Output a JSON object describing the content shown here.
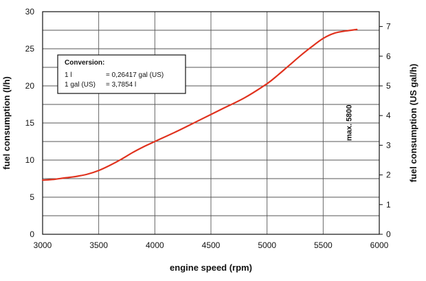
{
  "chart_data": {
    "type": "line",
    "xlabel": "engine speed (rpm)",
    "ylabel": "fuel consumption (l/h)",
    "y2label": "fuel consumption (US gal/h)",
    "xlim": [
      3000,
      6000
    ],
    "ylim": [
      0,
      30
    ],
    "y2lim": [
      0,
      7.5
    ],
    "x_ticks": [
      3000,
      3500,
      4000,
      4500,
      5000,
      5500,
      6000
    ],
    "y_ticks": [
      0,
      5,
      10,
      15,
      20,
      25,
      30
    ],
    "y2_ticks": [
      0,
      1,
      2,
      3,
      4,
      5,
      6,
      7
    ],
    "grid": true,
    "series": [
      {
        "color": "#e0321e",
        "x": [
          3000,
          3100,
          3200,
          3300,
          3400,
          3500,
          3600,
          3700,
          3800,
          3900,
          4000,
          4200,
          4400,
          4600,
          4800,
          5000,
          5100,
          5200,
          5300,
          5400,
          5500,
          5600,
          5700,
          5800
        ],
        "y": [
          7.3,
          7.4,
          7.6,
          7.8,
          8.1,
          8.6,
          9.3,
          10.1,
          11.0,
          11.8,
          12.5,
          13.9,
          15.4,
          16.9,
          18.4,
          20.3,
          21.5,
          22.8,
          24.1,
          25.3,
          26.4,
          27.1,
          27.4,
          27.6
        ]
      }
    ],
    "annotations": {
      "conversion": {
        "title": "Conversion:",
        "line1_left": "1 l",
        "line1_right": "= 0,26417 gal (US)",
        "line2_left": "1 gal (US)",
        "line2_right": "= 3,7854 l"
      },
      "max_label": "max. 5800",
      "max_x": 5800
    }
  }
}
